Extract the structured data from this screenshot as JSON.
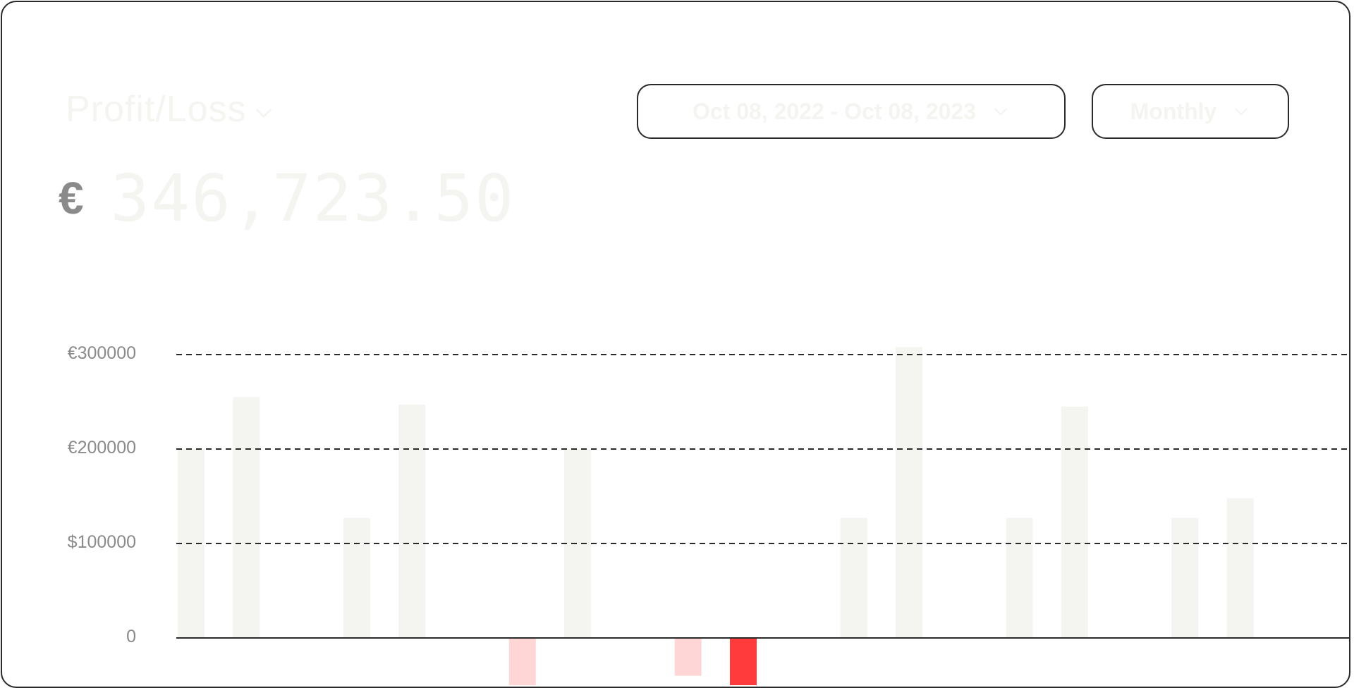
{
  "header": {
    "title": "Profit/Loss",
    "title_icon": "chevron-down-icon",
    "date_range": "Oct 08, 2022 - Oct 08, 2023",
    "period": "Monthly",
    "dropdown_icon": "chevron-down-icon"
  },
  "summary": {
    "currency_symbol": "€",
    "amount": "346,723.50"
  },
  "colors": {
    "positive_bar": "#f4f4f1",
    "negative_bar_light": "#ffd6d6",
    "negative_bar_strong": "#ff3b3b",
    "gridline": "#2a2a2a",
    "tick_text": "#8a8a8a"
  },
  "chart_data": {
    "type": "bar",
    "title": "",
    "xlabel": "",
    "ylabel": "",
    "ylim": [
      -50000,
      310000
    ],
    "grid": true,
    "y_ticks": [
      {
        "value": 300000,
        "label": "€300000"
      },
      {
        "value": 200000,
        "label": "€200000"
      },
      {
        "value": 100000,
        "label": "$100000"
      },
      {
        "value": 0,
        "label": "0"
      }
    ],
    "values": [
      200000,
      255000,
      0,
      127000,
      247000,
      0,
      -50000,
      200000,
      0,
      -40000,
      -50000,
      0,
      127000,
      308000,
      0,
      127000,
      245000,
      0,
      127000,
      148000,
      0
    ],
    "highlight_index": 10
  }
}
